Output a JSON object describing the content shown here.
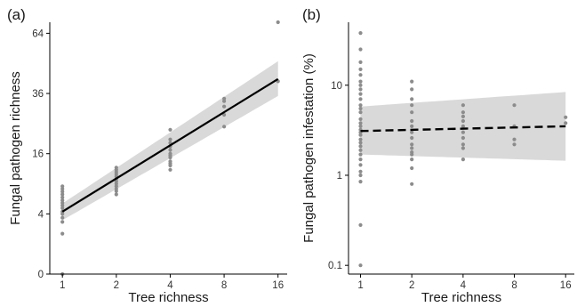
{
  "colors": {
    "point": "#8c8c8c",
    "band": "#d9d9d9",
    "line": "#000000",
    "axis": "#000000"
  },
  "chart_data": [
    {
      "type": "scatter",
      "panel_label": "(a)",
      "xlabel": "Tree richness",
      "ylabel": "Fungal pathogen richness",
      "x_scale": "log2",
      "y_scale": "sqrt",
      "x_ticks": [
        1,
        2,
        4,
        8,
        16
      ],
      "x_tick_labels": [
        "1",
        "2",
        "4",
        "8",
        "16"
      ],
      "y_ticks": [
        0,
        4,
        16,
        36,
        64
      ],
      "y_tick_labels": [
        "0",
        "4",
        "16",
        "36",
        "64"
      ],
      "xlim": [
        0.85,
        18
      ],
      "ylim": [
        0,
        70
      ],
      "grid": false,
      "points": {
        "x": [
          1,
          1,
          1,
          1,
          1,
          1,
          1,
          1,
          1,
          1,
          1,
          1,
          1,
          1,
          1,
          2,
          2,
          2,
          2,
          2,
          2,
          2,
          2,
          2,
          2,
          2,
          2,
          4,
          4,
          4,
          4,
          4,
          4,
          4,
          4,
          4,
          4,
          4,
          4,
          8,
          8,
          8,
          8,
          8,
          16,
          16
        ],
        "y": [
          0,
          1.8,
          3,
          3.5,
          4,
          4.3,
          4.8,
          5.2,
          5.6,
          6,
          6.5,
          7,
          7.5,
          8,
          8.5,
          7,
          7.6,
          8,
          8.5,
          9,
          9.5,
          10,
          10.5,
          11,
          11.5,
          12,
          12.5,
          12,
          13,
          13.5,
          14,
          15,
          15.5,
          16,
          17,
          18,
          19,
          20,
          23,
          24,
          28,
          31,
          33,
          34,
          41,
          70
        ]
      },
      "fit_line": {
        "x": [
          1,
          16
        ],
        "y": [
          4.3,
          42
        ],
        "style": "solid"
      },
      "confidence_band": {
        "x": [
          1,
          16
        ],
        "lower": [
          3.2,
          35
        ],
        "upper": [
          5.5,
          50
        ]
      }
    },
    {
      "type": "scatter",
      "panel_label": "(b)",
      "xlabel": "Tree richness",
      "ylabel": "Fungal pathogen infestation (%)",
      "x_scale": "log2",
      "y_scale": "log10",
      "x_ticks": [
        1,
        2,
        4,
        8,
        16
      ],
      "x_tick_labels": [
        "1",
        "2",
        "4",
        "8",
        "16"
      ],
      "y_ticks": [
        0.1,
        1,
        10
      ],
      "y_tick_labels": [
        "0.1",
        "1",
        "10"
      ],
      "xlim": [
        0.85,
        18
      ],
      "ylim": [
        0.08,
        50
      ],
      "grid": false,
      "points": {
        "x": [
          1,
          1,
          1,
          1,
          1,
          1,
          1,
          1,
          1,
          1,
          1,
          1,
          1,
          1,
          1,
          1,
          1,
          1,
          1,
          1,
          1,
          1,
          1,
          1,
          1,
          1,
          1,
          1,
          1,
          1,
          1,
          2,
          2,
          2,
          2,
          2,
          2,
          2,
          2,
          2,
          2,
          2,
          2,
          2,
          2,
          2,
          2,
          4,
          4,
          4,
          4,
          4,
          4,
          4,
          4,
          4,
          4,
          8,
          8,
          8,
          8,
          16,
          16
        ],
        "y": [
          0.1,
          0.28,
          0.85,
          1,
          1.1,
          1.3,
          1.5,
          1.7,
          1.9,
          2.1,
          2.3,
          2.5,
          2.8,
          3.0,
          3.2,
          3.5,
          3.8,
          4.2,
          5,
          5.5,
          6,
          7,
          8,
          9,
          10,
          11,
          13,
          15,
          18,
          25,
          38,
          0.8,
          1.2,
          1.5,
          1.7,
          1.8,
          2,
          2.2,
          2.6,
          3,
          3.5,
          4,
          5,
          6,
          7,
          9,
          11,
          1.5,
          2,
          2.2,
          2.6,
          3,
          3.5,
          4,
          4.5,
          5,
          6,
          2.2,
          2.5,
          3.5,
          6,
          3.8,
          4.4
        ]
      },
      "fit_line": {
        "x": [
          1,
          16
        ],
        "y": [
          3.1,
          3.5
        ],
        "style": "dashed"
      },
      "confidence_band": {
        "x": [
          1,
          16
        ],
        "lower": [
          1.7,
          1.45
        ],
        "upper": [
          5.8,
          8.4
        ]
      }
    }
  ]
}
